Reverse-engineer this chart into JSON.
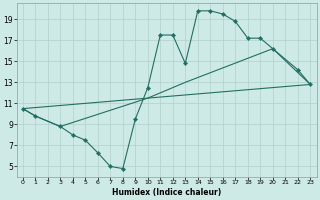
{
  "xlabel": "Humidex (Indice chaleur)",
  "background_color": "#ceeae6",
  "grid_color": "#b0d0cc",
  "line_color": "#236e62",
  "line1_x": [
    0,
    1,
    3,
    4,
    5,
    6,
    7,
    8,
    9,
    10,
    11,
    12,
    13,
    14,
    15,
    16,
    17,
    18,
    19,
    20,
    22,
    23
  ],
  "line1_y": [
    10.5,
    9.8,
    8.8,
    8.0,
    7.5,
    6.3,
    5.0,
    4.8,
    9.5,
    12.5,
    17.5,
    17.5,
    14.8,
    19.8,
    19.8,
    19.5,
    18.8,
    17.2,
    17.2,
    16.2,
    14.2,
    12.8
  ],
  "line2_x": [
    0,
    1,
    3,
    10,
    11,
    12,
    13,
    20,
    23
  ],
  "line2_y": [
    10.5,
    9.8,
    8.8,
    11.5,
    12.0,
    12.5,
    13.0,
    16.2,
    12.8
  ],
  "line3_x": [
    0,
    23
  ],
  "line3_y": [
    10.5,
    12.8
  ],
  "xlim": [
    -0.5,
    23.5
  ],
  "ylim": [
    4.0,
    20.5
  ],
  "xticks": [
    0,
    1,
    2,
    3,
    4,
    5,
    6,
    7,
    8,
    9,
    10,
    11,
    12,
    13,
    14,
    15,
    16,
    17,
    18,
    19,
    20,
    21,
    22,
    23
  ],
  "yticks": [
    5,
    7,
    9,
    11,
    13,
    15,
    17,
    19
  ]
}
